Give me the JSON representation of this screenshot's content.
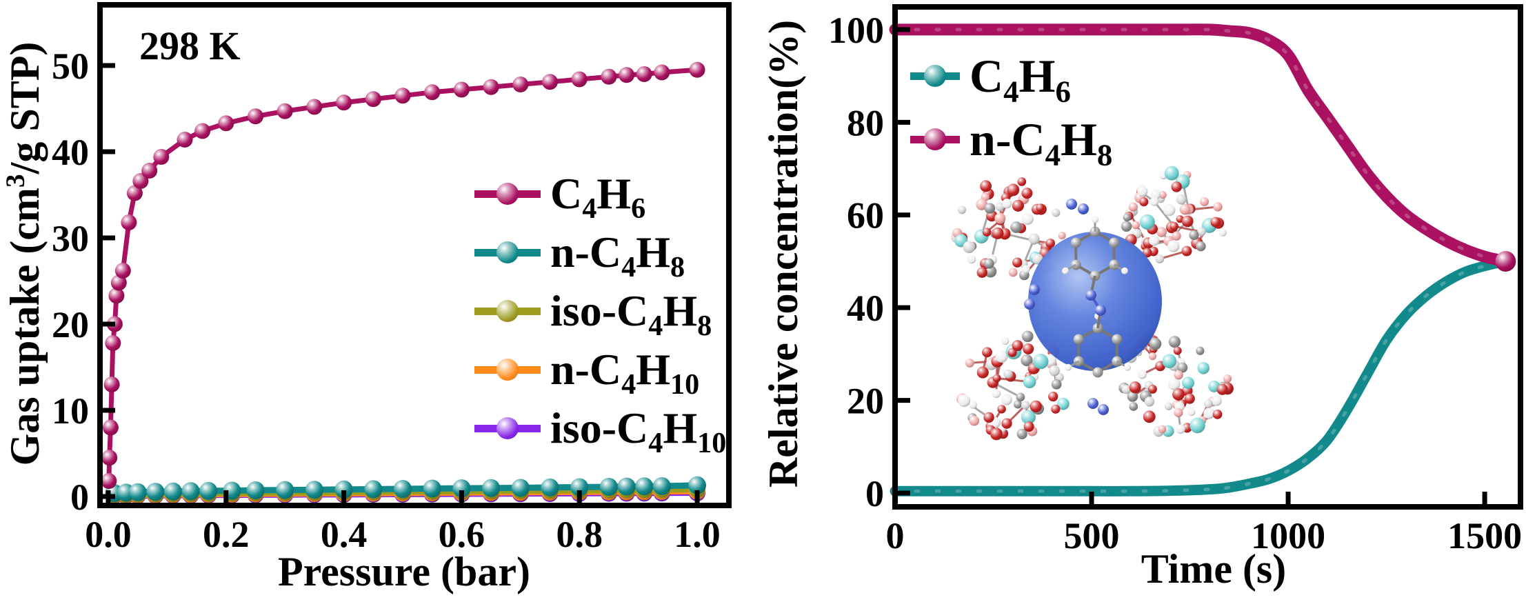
{
  "figure": {
    "background": "#ffffff",
    "frame_color": "#000000",
    "text_color": "#000000"
  },
  "chart_data": [
    {
      "id": "isotherm",
      "type": "line",
      "annotation": "298 K",
      "xlabel": "Pressure (bar)",
      "ylabel": "Gas uptake (cm³/g STP)",
      "ylabel_parts": [
        {
          "t": "Gas uptake (cm"
        },
        {
          "t": "3",
          "sup": true
        },
        {
          "t": "/g STP)"
        }
      ],
      "xlim": [
        0,
        1.05
      ],
      "ylim": [
        0,
        57
      ],
      "xticks": [
        0,
        0.2,
        0.4,
        0.6,
        0.8,
        1.0
      ],
      "xtick_labels": [
        "0.0",
        "0.2",
        "0.4",
        "0.6",
        "0.8",
        "1.0"
      ],
      "yticks": [
        0,
        10,
        20,
        30,
        40,
        50
      ],
      "ytick_labels": [
        "0",
        "10",
        "20",
        "30",
        "40",
        "50"
      ],
      "grid": false,
      "legend_position": "center-right",
      "series": [
        {
          "name": "C4H6",
          "label": "C₄H₆",
          "label_parts": [
            {
              "t": "C"
            },
            {
              "t": "4",
              "sub": true
            },
            {
              "t": "H"
            },
            {
              "t": "6",
              "sub": true
            }
          ],
          "color": "#AA1160",
          "marker": "sphere",
          "x": [
            0.001,
            0.002,
            0.004,
            0.006,
            0.008,
            0.011,
            0.014,
            0.018,
            0.025,
            0.035,
            0.045,
            0.055,
            0.07,
            0.09,
            0.13,
            0.16,
            0.2,
            0.25,
            0.3,
            0.35,
            0.4,
            0.45,
            0.5,
            0.55,
            0.6,
            0.65,
            0.7,
            0.75,
            0.8,
            0.85,
            0.88,
            0.91,
            0.94,
            1.0
          ],
          "y": [
            1.8,
            4.5,
            8,
            13,
            17.8,
            20,
            23.3,
            24.8,
            26.2,
            31.8,
            35.2,
            36.6,
            37.8,
            39.4,
            41.4,
            42.4,
            43.3,
            44.1,
            44.7,
            45.2,
            45.7,
            46.1,
            46.5,
            46.9,
            47.2,
            47.5,
            47.8,
            48.1,
            48.4,
            48.7,
            48.9,
            49,
            49.2,
            49.5
          ]
        },
        {
          "name": "n-C4H8",
          "label": "n-C₄H₈",
          "label_parts": [
            {
              "t": "n-C"
            },
            {
              "t": "4",
              "sub": true
            },
            {
              "t": "H"
            },
            {
              "t": "8",
              "sub": true
            }
          ],
          "color": "#128A8C",
          "marker": "sphere",
          "x": [
            0.01,
            0.03,
            0.05,
            0.08,
            0.11,
            0.14,
            0.17,
            0.21,
            0.25,
            0.3,
            0.35,
            0.4,
            0.45,
            0.5,
            0.55,
            0.6,
            0.65,
            0.7,
            0.75,
            0.8,
            0.85,
            0.88,
            0.91,
            0.94,
            1.0
          ],
          "y": [
            0.4,
            0.45,
            0.5,
            0.55,
            0.58,
            0.62,
            0.65,
            0.68,
            0.72,
            0.75,
            0.78,
            0.82,
            0.85,
            0.88,
            0.92,
            0.95,
            0.98,
            1.0,
            1.05,
            1.08,
            1.12,
            1.15,
            1.18,
            1.2,
            1.3
          ]
        },
        {
          "name": "iso-C4H8",
          "label": "iso-C₄H₈",
          "label_parts": [
            {
              "t": "iso-C"
            },
            {
              "t": "4",
              "sub": true
            },
            {
              "t": "H"
            },
            {
              "t": "8",
              "sub": true
            }
          ],
          "color": "#9C9B1E",
          "marker": "sphere",
          "x": [
            0.01,
            0.03,
            0.05,
            0.08,
            0.11,
            0.14,
            0.17,
            0.21,
            0.25,
            0.3,
            0.35,
            0.4,
            0.45,
            0.5,
            0.55,
            0.6,
            0.65,
            0.7,
            0.75,
            0.8,
            0.85,
            0.88,
            0.91,
            0.94,
            1.0
          ],
          "y": [
            0.2,
            0.23,
            0.26,
            0.3,
            0.33,
            0.36,
            0.38,
            0.41,
            0.44,
            0.47,
            0.5,
            0.52,
            0.55,
            0.58,
            0.6,
            0.62,
            0.65,
            0.67,
            0.7,
            0.72,
            0.74,
            0.76,
            0.78,
            0.8,
            0.85
          ]
        },
        {
          "name": "n-C4H10",
          "label": "n-C₄H₁₀",
          "label_parts": [
            {
              "t": "n-C"
            },
            {
              "t": "4",
              "sub": true
            },
            {
              "t": "H"
            },
            {
              "t": "10",
              "sub": true
            }
          ],
          "color": "#FF8C19",
          "marker": "sphere",
          "x": [
            0.01,
            0.03,
            0.05,
            0.08,
            0.11,
            0.14,
            0.17,
            0.21,
            0.25,
            0.3,
            0.35,
            0.4,
            0.45,
            0.5,
            0.55,
            0.6,
            0.65,
            0.7,
            0.75,
            0.8,
            0.85,
            0.88,
            0.91,
            0.94,
            1.0
          ],
          "y": [
            0.1,
            0.12,
            0.14,
            0.17,
            0.19,
            0.21,
            0.23,
            0.25,
            0.27,
            0.29,
            0.31,
            0.33,
            0.35,
            0.37,
            0.39,
            0.41,
            0.43,
            0.45,
            0.47,
            0.49,
            0.51,
            0.52,
            0.53,
            0.55,
            0.58
          ]
        },
        {
          "name": "iso-C4H10",
          "label": "iso-C₄H₁₀",
          "label_parts": [
            {
              "t": "iso-C"
            },
            {
              "t": "4",
              "sub": true
            },
            {
              "t": "H"
            },
            {
              "t": "10",
              "sub": true
            }
          ],
          "color": "#8526E8",
          "marker": "sphere",
          "x": [
            0.01,
            0.03,
            0.05,
            0.08,
            0.11,
            0.14,
            0.17,
            0.21,
            0.25,
            0.3,
            0.35,
            0.4,
            0.45,
            0.5,
            0.55,
            0.6,
            0.65,
            0.7,
            0.75,
            0.8,
            0.85,
            0.88,
            0.91,
            0.94,
            1.0
          ],
          "y": [
            0.05,
            0.06,
            0.08,
            0.09,
            0.11,
            0.12,
            0.14,
            0.15,
            0.17,
            0.18,
            0.2,
            0.21,
            0.23,
            0.24,
            0.26,
            0.27,
            0.29,
            0.3,
            0.32,
            0.33,
            0.35,
            0.36,
            0.37,
            0.38,
            0.4
          ]
        }
      ]
    },
    {
      "id": "breakthrough",
      "type": "line",
      "xlabel": "Time (s)",
      "ylabel": "Relative concentration(%)",
      "ylabel_parts": [
        {
          "t": "Relative concentration(%)"
        }
      ],
      "xlim": [
        0,
        1591
      ],
      "ylim": [
        0,
        100
      ],
      "xticks": [
        0,
        500,
        1000,
        1500
      ],
      "xtick_labels": [
        "0",
        "500",
        "1000",
        "1500"
      ],
      "yticks": [
        0,
        20,
        40,
        60,
        80,
        100
      ],
      "ytick_labels": [
        "0",
        "20",
        "40",
        "60",
        "80",
        "100"
      ],
      "grid": false,
      "legend_position": "upper-left",
      "series": [
        {
          "name": "C4H6",
          "label": "C₄H₆",
          "label_parts": [
            {
              "t": "C"
            },
            {
              "t": "4",
              "sub": true
            },
            {
              "t": "H"
            },
            {
              "t": "6",
              "sub": true
            }
          ],
          "color": "#128A8C",
          "marker": "none",
          "x": [
            0,
            100,
            200,
            300,
            400,
            500,
            600,
            700,
            800,
            850,
            900,
            950,
            1000,
            1050,
            1100,
            1150,
            1200,
            1250,
            1300,
            1350,
            1400,
            1450,
            1500,
            1553
          ],
          "y": [
            0.4,
            0.4,
            0.4,
            0.4,
            0.4,
            0.4,
            0.4,
            0.5,
            0.8,
            1.2,
            2,
            3,
            4.8,
            7.5,
            11.5,
            18,
            25.5,
            33,
            38.5,
            42.5,
            45.5,
            47.7,
            49,
            50
          ]
        },
        {
          "name": "n-C4H8",
          "label": "n-C₄H₈",
          "label_parts": [
            {
              "t": "n-C"
            },
            {
              "t": "4",
              "sub": true
            },
            {
              "t": "H"
            },
            {
              "t": "8",
              "sub": true
            }
          ],
          "color": "#AA1160",
          "marker": "end-sphere",
          "x": [
            0,
            100,
            200,
            300,
            400,
            500,
            600,
            700,
            800,
            850,
            900,
            950,
            1000,
            1050,
            1100,
            1150,
            1200,
            1250,
            1300,
            1350,
            1400,
            1450,
            1500,
            1553
          ],
          "y": [
            100,
            100,
            100,
            100,
            100,
            100,
            100,
            100,
            100,
            99.7,
            99.3,
            97.8,
            94.5,
            87,
            81,
            75,
            69,
            64,
            60,
            57,
            54.5,
            52.5,
            51,
            50
          ]
        }
      ],
      "inset": {
        "name": "mof-structure",
        "description": "Ball-and-stick MOF cage (red O, gray C, cyan metal atoms) with a large blue sphere representing the pore cavity and an azo-linker through the center",
        "sphere_color": "#3B5EC9",
        "atom_colors": [
          "#C62424",
          "#EFA6A6",
          "#8E8E8E",
          "#D6D6D6",
          "#72D2D2",
          "#EEEEEE",
          "#4A5ED2"
        ]
      }
    }
  ]
}
